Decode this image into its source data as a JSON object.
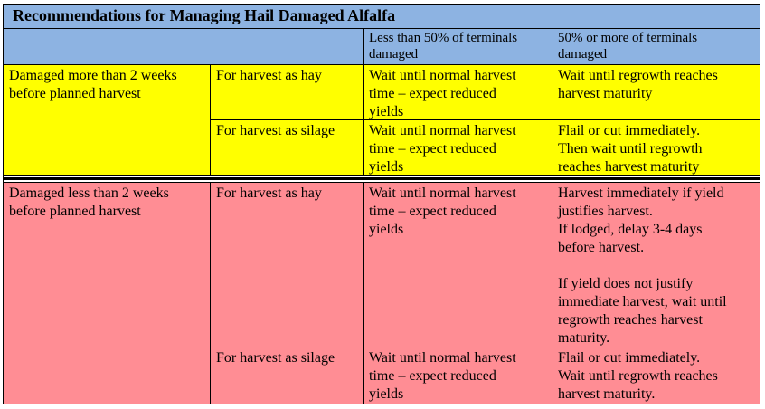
{
  "table": {
    "title": "Recommendations for Managing Hail Damaged Alfalfa",
    "headers": {
      "lt50": "Less than 50% of terminals\ndamaged",
      "ge50": "50% or more of terminals\ndamaged"
    },
    "groups": [
      {
        "label": "Damaged more than 2 weeks\nbefore planned harvest",
        "rows": [
          {
            "use": "For harvest as hay",
            "lt50": "Wait until normal harvest\ntime – expect reduced\nyields",
            "ge50": "Wait until regrowth reaches\nharvest maturity"
          },
          {
            "use": "For harvest as silage",
            "lt50": "Wait until normal harvest\ntime – expect reduced\nyields",
            "ge50": "Flail or cut immediately.\nThen wait until regrowth\nreaches harvest maturity"
          }
        ]
      },
      {
        "label": "Damaged less than 2 weeks\nbefore planned harvest",
        "rows": [
          {
            "use": "For harvest as hay",
            "lt50": "Wait until normal harvest\ntime – expect reduced\nyields",
            "ge50": "Harvest immediately if yield\njustifies harvest.\nIf lodged, delay 3-4 days\nbefore harvest.\n\nIf yield does not justify\nimmediate harvest, wait until\nregrowth reaches harvest\nmaturity."
          },
          {
            "use": "For harvest as silage",
            "lt50": "Wait until normal harvest\ntime – expect reduced\nyields",
            "ge50": "Flail or cut immediately.\nWait until regrowth reaches\nharvest maturity."
          }
        ]
      }
    ],
    "colors": {
      "header": "#8db3e2",
      "group1": "#ffff00",
      "group2": "#ff8d94"
    }
  }
}
